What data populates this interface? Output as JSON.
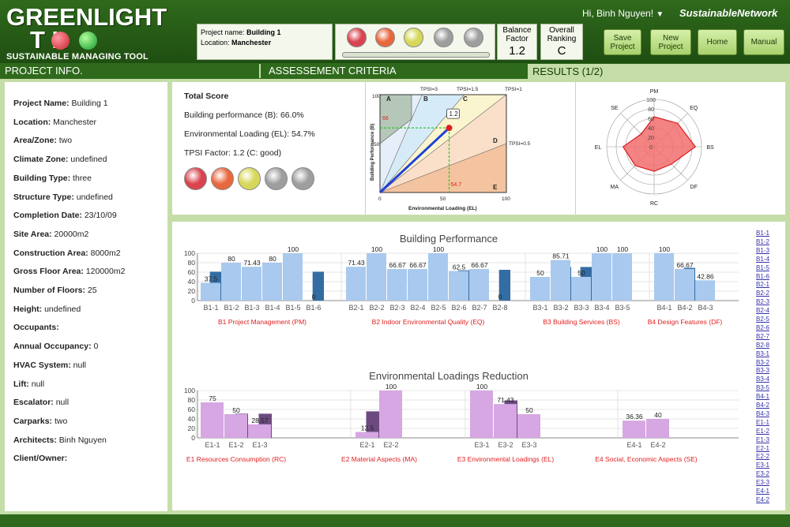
{
  "header": {
    "logo_line1": "GREENLIGHT",
    "logo_line2": "T   L",
    "logo_subtitle": "SUSTAINABLE MANAGING TOOL",
    "project_name_label": "Project name:",
    "project_name": "Building 1",
    "location_label": "Location:",
    "location": "Manchester",
    "balance_factor_label": "Balance Factor",
    "balance_factor": "1.2",
    "overall_ranking_label": "Overall Ranking",
    "overall_ranking": "C",
    "user_greeting": "Hi, Binh Nguyen!",
    "brand": "SustainableNetwork",
    "buttons": {
      "save": "Save Project",
      "new": "New Project",
      "home": "Home",
      "manual": "Manual"
    },
    "lamp_colors": [
      "#d9444f",
      "#e8683e",
      "#d7d85a",
      "#9e9e9e",
      "#9e9e9e"
    ]
  },
  "nav": {
    "project_info": "PROJECT INFO.",
    "assessment": "ASSESSEMENT CRITERIA",
    "results": "RESULTS (1/2)"
  },
  "project_info": [
    {
      "label": "Project Name:",
      "value": "Building 1"
    },
    {
      "label": "Location:",
      "value": "Manchester"
    },
    {
      "label": "Area/Zone:",
      "value": "two"
    },
    {
      "label": "Climate Zone:",
      "value": "undefined"
    },
    {
      "label": "Building Type:",
      "value": "three"
    },
    {
      "label": "Structure Type:",
      "value": "undefined"
    },
    {
      "label": "Completion Date:",
      "value": "23/10/09"
    },
    {
      "label": "Site Area:",
      "value": "20000m2"
    },
    {
      "label": "Construction Area:",
      "value": "8000m2"
    },
    {
      "label": "Gross Floor Area:",
      "value": "120000m2"
    },
    {
      "label": "Number of Floors:",
      "value": "25"
    },
    {
      "label": "Height:",
      "value": "undefined"
    },
    {
      "label": "Occupants:",
      "value": ""
    },
    {
      "label": "Annual Occupancy:",
      "value": "0"
    },
    {
      "label": "HVAC System:",
      "value": "null"
    },
    {
      "label": "Lift:",
      "value": "null"
    },
    {
      "label": "Escalator:",
      "value": "null"
    },
    {
      "label": "Carparks:",
      "value": "two"
    },
    {
      "label": "Architects:",
      "value": "Binh Nguyen"
    },
    {
      "label": "Client/Owner:",
      "value": ""
    }
  ],
  "score": {
    "title": "Total Score",
    "bp": "Building performance (B): 66.0%",
    "el": "Environmental Loading (EL): 54.7%",
    "tpsi": "TPSI Factor: 1.2 (C: good)"
  },
  "tpsi_chart": {
    "xlabel": "Environmental Loading (EL)",
    "ylabel": "Building Performance (B)",
    "tick0": "0",
    "tick50": "50",
    "tick100": "100",
    "zones": [
      "A",
      "B",
      "C",
      "D",
      "E"
    ],
    "tpsi_labels": [
      "TPSI=3",
      "TPSI=1.5",
      "TPSI=1",
      "TPSI=0.5"
    ],
    "point_label": "1.2",
    "bp_value": "66",
    "el_value": "54.7",
    "chart_data": {
      "type": "scatter",
      "x": [
        54.7
      ],
      "y": [
        66
      ],
      "xlim": [
        0,
        100
      ],
      "ylim": [
        0,
        100
      ]
    }
  },
  "radar": {
    "axes": [
      "PM",
      "EQ",
      "BS",
      "DF",
      "RC",
      "MA",
      "EL",
      "SE"
    ],
    "ticks": [
      "100",
      "80",
      "60",
      "40",
      "20",
      "0"
    ],
    "chart_data": {
      "type": "radar",
      "values": [
        63.5,
        70.0,
        87.1,
        51.9,
        51.8,
        56.3,
        65.5,
        38.2
      ],
      "range": [
        0,
        100
      ]
    }
  },
  "bp_chart": {
    "title": "Building Performance",
    "yticks": [
      "0",
      "20",
      "40",
      "60",
      "80",
      "100"
    ],
    "groups": [
      {
        "name": "B1 Project Management (PM)",
        "labels": [
          "B1-1",
          "B1-2",
          "B1-3",
          "B1-4",
          "B1-5",
          "B1-6"
        ],
        "values": [
          37.5,
          80,
          71.43,
          80,
          100,
          0
        ],
        "value_labels": [
          "37.5",
          "80",
          "71.43",
          "80",
          "100",
          "0"
        ],
        "dark_height": [
          61,
          null,
          null,
          null,
          null,
          61
        ]
      },
      {
        "name": "B2 Indoor Environmental Quality (EQ)",
        "labels": [
          "B2-1",
          "B2-2",
          "B2-3",
          "B2-4",
          "B2-5",
          "B2-6",
          "B2-7",
          "B2-8"
        ],
        "values": [
          71.43,
          100,
          66.67,
          66.67,
          100,
          62.5,
          66.67,
          0
        ],
        "value_labels": [
          "71.43",
          "100",
          "66.67",
          "66.67",
          "100",
          "62.5",
          "66.67",
          "0"
        ],
        "dark_height": [
          null,
          null,
          null,
          null,
          null,
          64,
          null,
          65
        ]
      },
      {
        "name": "B3 Building Services (BS)",
        "labels": [
          "B3-1",
          "B3-2",
          "B3-3",
          "B3-4",
          "B3-5"
        ],
        "values": [
          50,
          85.71,
          50,
          100,
          100
        ],
        "value_labels": [
          "50",
          "85.71",
          "50",
          "100",
          "100"
        ],
        "dark_height": [
          null,
          71,
          71,
          null,
          null
        ]
      },
      {
        "name": "B4 Design Features (DF)",
        "labels": [
          "B4-1",
          "B4-2",
          "B4-3"
        ],
        "values": [
          100,
          66.67,
          42.86
        ],
        "value_labels": [
          "100",
          "66.67",
          "42.86"
        ],
        "dark_height": [
          null,
          69,
          null
        ]
      }
    ],
    "chart_data": {
      "type": "bar",
      "ylim": [
        0,
        100
      ]
    }
  },
  "el_chart": {
    "title": "Environmental Loadings Reduction",
    "yticks": [
      "0",
      "20",
      "40",
      "60",
      "80",
      "100"
    ],
    "groups": [
      {
        "name": "E1 Resources Consumption (RC)",
        "labels": [
          "E1-1",
          "E1-2",
          "E1-3"
        ],
        "values": [
          75,
          50,
          28.57
        ],
        "value_labels": [
          "75",
          "50",
          "28.57"
        ],
        "dark_height": [
          null,
          51,
          51
        ]
      },
      {
        "name": "E2 Material Aspects (MA)",
        "labels": [
          "E2-1",
          "E2-2"
        ],
        "values": [
          12.5,
          100
        ],
        "value_labels": [
          "12.5",
          "100"
        ],
        "dark_height": [
          56,
          null
        ]
      },
      {
        "name": "E3 Environmental Loadings (EL)",
        "labels": [
          "E3-1",
          "E3-2",
          "E3-3"
        ],
        "values": [
          100,
          71.43,
          50
        ],
        "value_labels": [
          "100",
          "71.43",
          "50"
        ],
        "dark_height": [
          null,
          79,
          null
        ]
      },
      {
        "name": "E4 Social, Economic Aspects (SE)",
        "labels": [
          "E4-1",
          "E4-2"
        ],
        "values": [
          36.36,
          40
        ],
        "value_labels": [
          "36.36",
          "40"
        ],
        "dark_height": [
          null,
          null
        ]
      }
    ],
    "chart_data": {
      "type": "bar",
      "ylim": [
        0,
        100
      ]
    }
  },
  "side_links": [
    "B1-1",
    "B1-2",
    "B1-3",
    "B1-4",
    "B1-5",
    "B1-6",
    "B2-1",
    "B2-2",
    "B2-3",
    "B2-4",
    "B2-5",
    "B2-6",
    "B2-7",
    "B2-8",
    "B3-1",
    "B3-2",
    "B3-3",
    "B3-4",
    "B3-5",
    "B4-1",
    "B4-2",
    "B4-3",
    "E1-1",
    "E1-2",
    "E1-3",
    "E2-1",
    "E2-2",
    "E3-1",
    "E3-2",
    "E3-3",
    "E4-1",
    "E4-2"
  ],
  "colors": {
    "dark_green": "#2f6a1c",
    "bp_light": "#a9c9ee",
    "bp_dark": "#336da3",
    "el_light": "#d6a7e3",
    "el_dark": "#6c4a80",
    "group_label": "#e02020",
    "radar_fill": "#f26d6d"
  }
}
